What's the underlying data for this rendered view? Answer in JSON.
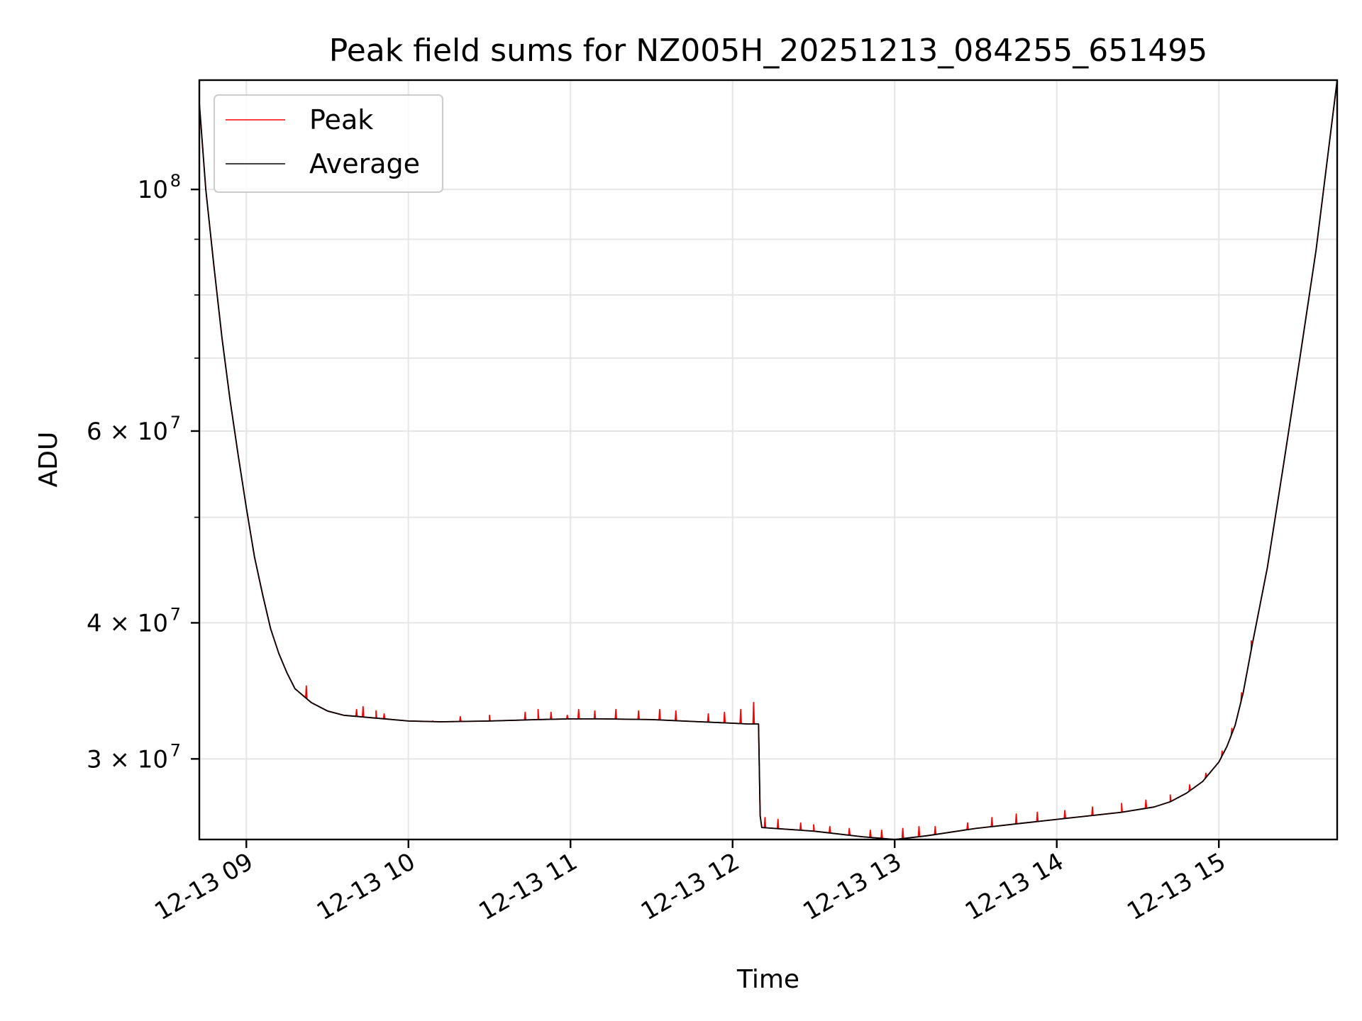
{
  "chart_data": {
    "type": "line",
    "title": "Peak field sums for NZ005H_20251213_084255_651495",
    "xlabel": "Time",
    "ylabel": "ADU",
    "y_scale": "log",
    "xlim": [
      8.71,
      15.73
    ],
    "ylim": [
      25300000,
      126000000
    ],
    "grid": true,
    "legend_position": "upper-left",
    "x_ticks": [
      {
        "value": 9,
        "label": "12-13 09"
      },
      {
        "value": 10,
        "label": "12-13 10"
      },
      {
        "value": 11,
        "label": "12-13 11"
      },
      {
        "value": 12,
        "label": "12-13 12"
      },
      {
        "value": 13,
        "label": "12-13 13"
      },
      {
        "value": 14,
        "label": "12-13 14"
      },
      {
        "value": 15,
        "label": "12-13 15"
      }
    ],
    "y_major_ticks": [
      {
        "value": 30000000,
        "base": "3 × 10",
        "exp": "7"
      },
      {
        "value": 40000000,
        "base": "4 × 10",
        "exp": "7"
      },
      {
        "value": 60000000,
        "base": "6 × 10",
        "exp": "7"
      },
      {
        "value": 100000000,
        "base": "10",
        "exp": "8"
      }
    ],
    "y_minor_ticks": [
      50000000,
      70000000,
      80000000,
      90000000
    ],
    "series": [
      {
        "name": "Peak",
        "color": "#ff0000",
        "spikes": [
          [
            9.37,
            35000000
          ],
          [
            9.68,
            33300000
          ],
          [
            9.72,
            33500000
          ],
          [
            9.8,
            33200000
          ],
          [
            9.85,
            33000000
          ],
          [
            10.15,
            32500000
          ],
          [
            10.32,
            32800000
          ],
          [
            10.5,
            32900000
          ],
          [
            10.72,
            33100000
          ],
          [
            10.8,
            33300000
          ],
          [
            10.88,
            33100000
          ],
          [
            10.98,
            32900000
          ],
          [
            11.05,
            33300000
          ],
          [
            11.15,
            33200000
          ],
          [
            11.28,
            33300000
          ],
          [
            11.42,
            33200000
          ],
          [
            11.55,
            33300000
          ],
          [
            11.65,
            33200000
          ],
          [
            11.85,
            33000000
          ],
          [
            11.95,
            33100000
          ],
          [
            12.05,
            33300000
          ],
          [
            12.13,
            33800000
          ],
          [
            12.2,
            26500000
          ],
          [
            12.28,
            26400000
          ],
          [
            12.42,
            26200000
          ],
          [
            12.5,
            26100000
          ],
          [
            12.6,
            26000000
          ],
          [
            12.72,
            25900000
          ],
          [
            12.85,
            25800000
          ],
          [
            12.92,
            25800000
          ],
          [
            13.05,
            25900000
          ],
          [
            13.15,
            26000000
          ],
          [
            13.25,
            26000000
          ],
          [
            13.45,
            26200000
          ],
          [
            13.6,
            26500000
          ],
          [
            13.75,
            26700000
          ],
          [
            13.88,
            26800000
          ],
          [
            14.05,
            26900000
          ],
          [
            14.22,
            27100000
          ],
          [
            14.4,
            27300000
          ],
          [
            14.55,
            27500000
          ],
          [
            14.7,
            27800000
          ],
          [
            14.82,
            28400000
          ],
          [
            14.92,
            29100000
          ],
          [
            15.02,
            30500000
          ],
          [
            15.08,
            32000000
          ],
          [
            15.14,
            34500000
          ],
          [
            15.2,
            38500000
          ]
        ]
      },
      {
        "name": "Average",
        "color": "#000000",
        "points": [
          [
            8.71,
            120000000
          ],
          [
            8.75,
            100000000
          ],
          [
            8.8,
            85000000
          ],
          [
            8.85,
            73000000
          ],
          [
            8.9,
            64000000
          ],
          [
            8.95,
            57000000
          ],
          [
            9.0,
            51000000
          ],
          [
            9.05,
            46000000
          ],
          [
            9.1,
            42500000
          ],
          [
            9.15,
            39500000
          ],
          [
            9.2,
            37500000
          ],
          [
            9.25,
            36000000
          ],
          [
            9.3,
            34800000
          ],
          [
            9.4,
            33800000
          ],
          [
            9.5,
            33200000
          ],
          [
            9.6,
            32900000
          ],
          [
            9.8,
            32700000
          ],
          [
            10.0,
            32500000
          ],
          [
            10.2,
            32450000
          ],
          [
            10.5,
            32500000
          ],
          [
            10.8,
            32600000
          ],
          [
            11.0,
            32650000
          ],
          [
            11.2,
            32650000
          ],
          [
            11.5,
            32600000
          ],
          [
            11.8,
            32450000
          ],
          [
            12.0,
            32350000
          ],
          [
            12.1,
            32300000
          ],
          [
            12.16,
            32300000
          ],
          [
            12.17,
            26600000
          ],
          [
            12.18,
            25950000
          ],
          [
            12.5,
            25750000
          ],
          [
            12.8,
            25450000
          ],
          [
            13.0,
            25300000
          ],
          [
            13.2,
            25500000
          ],
          [
            13.5,
            25900000
          ],
          [
            13.8,
            26200000
          ],
          [
            14.0,
            26400000
          ],
          [
            14.2,
            26600000
          ],
          [
            14.4,
            26800000
          ],
          [
            14.6,
            27100000
          ],
          [
            14.7,
            27400000
          ],
          [
            14.8,
            27900000
          ],
          [
            14.9,
            28600000
          ],
          [
            15.0,
            29800000
          ],
          [
            15.05,
            30800000
          ],
          [
            15.1,
            32200000
          ],
          [
            15.15,
            34500000
          ],
          [
            15.2,
            37800000
          ],
          [
            15.3,
            45000000
          ],
          [
            15.4,
            56000000
          ],
          [
            15.5,
            70000000
          ],
          [
            15.6,
            88000000
          ],
          [
            15.73,
            126000000
          ]
        ]
      }
    ]
  }
}
